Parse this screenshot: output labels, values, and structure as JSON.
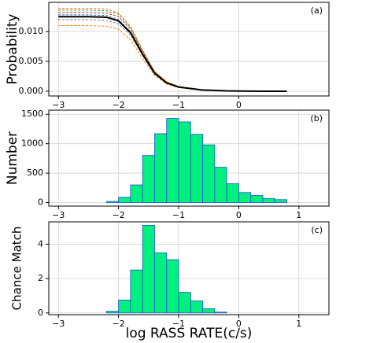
{
  "chart_data": [
    {
      "type": "line",
      "ylabel": "Probability",
      "annotation": "(a)",
      "xlim": [
        -3.16,
        1.5
      ],
      "ylim": [
        -0.0008,
        0.0149
      ],
      "xticks": [
        {
          "value": -3,
          "label": "−3"
        },
        {
          "value": -2,
          "label": "−2"
        },
        {
          "value": -1,
          "label": "−1"
        },
        0
      ],
      "yticks": [
        {
          "value": 0,
          "label": "0.000"
        },
        {
          "value": 0.005,
          "label": "0.005"
        },
        {
          "value": 0.01,
          "label": "0.010"
        }
      ],
      "grid": true,
      "x": [
        -3,
        -2.5,
        -2.2,
        -2.0,
        -1.8,
        -1.6,
        -1.4,
        -1.2,
        -1.0,
        -0.6,
        -0.2,
        0,
        0.4,
        0.8
      ],
      "series": [
        {
          "color": "#ff7f0e",
          "linestyle": "dashed",
          "values": [
            0.0139,
            0.0139,
            0.0138,
            0.0131,
            0.0109,
            0.0069,
            0.0033,
            0.0016,
            0.0008,
            0.0002,
            6e-05,
            2e-05,
            0,
            0
          ]
        },
        {
          "color": "#2ca02c",
          "linestyle": "dashed",
          "values": [
            0.0136,
            0.0136,
            0.0135,
            0.0129,
            0.0107,
            0.0068,
            0.0033,
            0.0015,
            0.0008,
            0.0002,
            5e-05,
            2e-05,
            0,
            0
          ]
        },
        {
          "color": "#d62728",
          "linestyle": "dashed",
          "values": [
            0.0132,
            0.0132,
            0.0131,
            0.0125,
            0.0104,
            0.0066,
            0.0032,
            0.0015,
            0.0007,
            0.0002,
            5e-05,
            2e-05,
            0,
            0
          ]
        },
        {
          "color": "#1f77b4",
          "linestyle": "dashed",
          "values": [
            0.0128,
            0.0128,
            0.0127,
            0.012,
            0.01,
            0.0063,
            0.0031,
            0.0014,
            0.0007,
            0.0002,
            5e-05,
            2e-05,
            0,
            0
          ]
        },
        {
          "color": "#7f7f7f",
          "linestyle": "dashed",
          "values": [
            0.012,
            0.012,
            0.0119,
            0.0113,
            0.0094,
            0.006,
            0.0029,
            0.0013,
            0.0007,
            0.0002,
            5e-05,
            2e-05,
            0,
            0
          ]
        },
        {
          "color": "#ff7f0e",
          "linestyle": "dashed",
          "values": [
            0.011,
            0.011,
            0.0109,
            0.0104,
            0.0086,
            0.0055,
            0.0026,
            0.0012,
            0.0006,
            0.0002,
            4e-05,
            2e-05,
            0,
            0
          ]
        },
        {
          "color": "#000000",
          "linestyle": "solid",
          "values": [
            0.0125,
            0.0125,
            0.0124,
            0.0118,
            0.0098,
            0.0062,
            0.003,
            0.0014,
            0.0007,
            0.0002,
            5e-05,
            2e-05,
            0,
            0
          ]
        }
      ]
    },
    {
      "type": "histogram",
      "ylabel": "Number",
      "annotation": "(b)",
      "xlim": [
        -3.16,
        1.5
      ],
      "ylim": [
        -60,
        1570
      ],
      "xticks": [
        {
          "value": -3,
          "label": "−3"
        },
        {
          "value": -2,
          "label": "−2"
        },
        {
          "value": -1,
          "label": "−1"
        },
        0,
        1
      ],
      "yticks": [
        0,
        500,
        1000,
        1500
      ],
      "grid": true,
      "color": "#00f080",
      "edgecolor": "#1f4fd0",
      "bins": [
        -2.2,
        -2.0,
        -1.8,
        -1.6,
        -1.4,
        -1.2,
        -1.0,
        -0.8,
        -0.6,
        -0.4,
        -0.2,
        0,
        0.2,
        0.4,
        0.6,
        0.8
      ],
      "values": [
        20,
        90,
        300,
        800,
        1170,
        1430,
        1370,
        1160,
        980,
        600,
        320,
        170,
        120,
        70,
        50
      ]
    },
    {
      "type": "histogram",
      "ylabel": "Chance Match",
      "annotation": "(c)",
      "xlabel": "log RASS RATE(c/s)",
      "xlim": [
        -3.16,
        1.5
      ],
      "ylim": [
        -0.1,
        5.3
      ],
      "xticks": [
        {
          "value": -3,
          "label": "−3"
        },
        {
          "value": -2,
          "label": "−2"
        },
        {
          "value": -1,
          "label": "−1"
        },
        0,
        1
      ],
      "yticks": [
        0,
        2,
        4
      ],
      "grid": true,
      "color": "#00f080",
      "edgecolor": "#1f4fd0",
      "bins": [
        -2.2,
        -2.0,
        -1.8,
        -1.6,
        -1.4,
        -1.2,
        -1.0,
        -0.8,
        -0.6,
        -0.4,
        -0.2
      ],
      "values": [
        0.1,
        0.75,
        2.5,
        5.1,
        3.5,
        3.1,
        1.2,
        0.7,
        0.25,
        0.05
      ]
    }
  ]
}
